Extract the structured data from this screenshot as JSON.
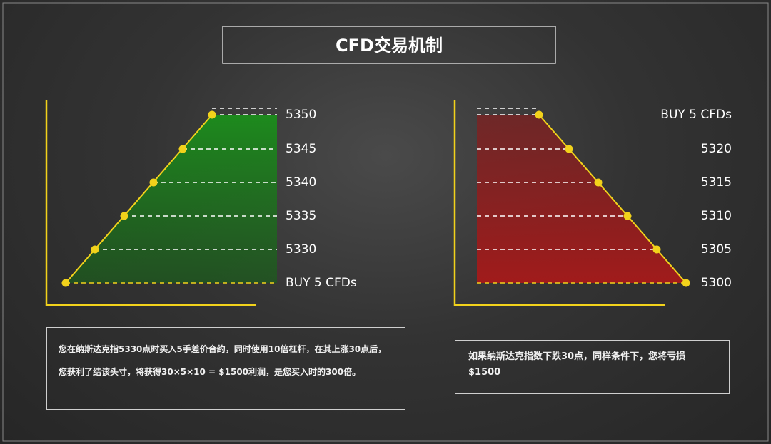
{
  "title": "CFD交易机制",
  "left": {
    "levels": [
      "BUY 5 CFDs",
      "5330",
      "5335",
      "5340",
      "5345",
      "5350"
    ]
  },
  "right": {
    "levels": [
      "5300",
      "5305",
      "5310",
      "5315",
      "5320",
      "BUY 5 CFDs"
    ]
  },
  "notes": [
    "您在纳斯达克指5330点时买入5手差价合约，同时使用10倍杠杆，在其上涨30点后，您获利了结该头寸，将获得30×5×10 = $1500利润，是您买入时的300倍。",
    "如果纳斯达克指数下跌30点，同样条件下，您将亏损$1500"
  ]
}
